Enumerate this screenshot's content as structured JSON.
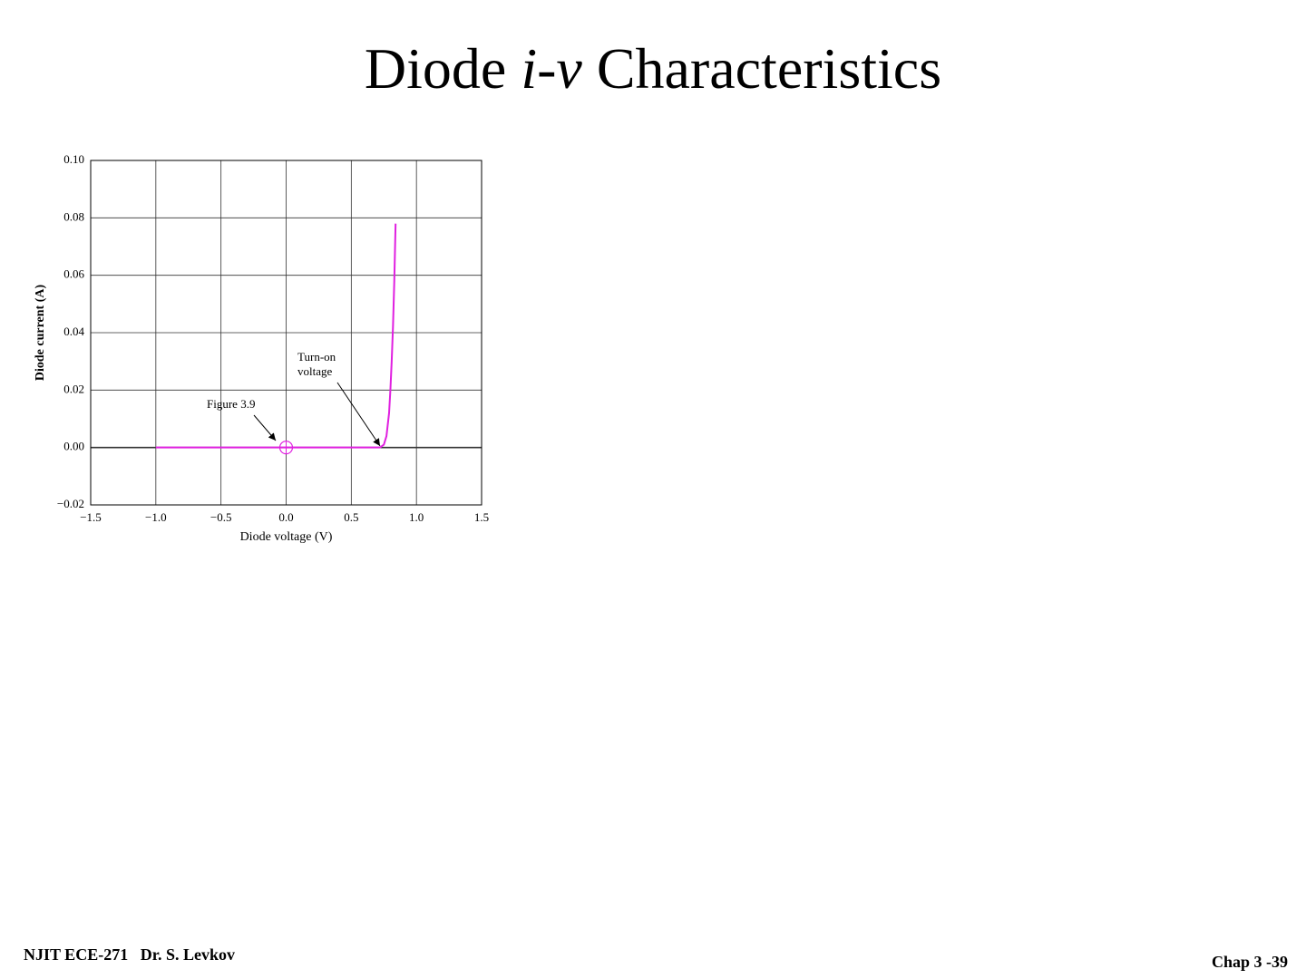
{
  "slide": {
    "title": [
      "Diode ",
      "i-v",
      " Characteristics"
    ],
    "footer_left": "NJIT ECE-271   Dr. S. Levkov",
    "footer_right": "Chap 3 -39"
  },
  "chart_data": {
    "type": "line",
    "xlabel": "Diode voltage (V)",
    "ylabel": "Diode current (A)",
    "x": [
      -1,
      0.72,
      0.75,
      0.77,
      0.79,
      0.8,
      0.81,
      0.82,
      0.83,
      0.84
    ],
    "values": [
      0,
      0,
      0.001,
      0.004,
      0.012,
      0.02,
      0.03,
      0.042,
      0.058,
      0.078
    ],
    "color": "#e020e0",
    "xlim": [
      -1.5,
      1.5
    ],
    "xticks": [
      {
        "value": -1.5,
        "label": "−1.5"
      },
      {
        "value": -1,
        "label": "−1.0"
      },
      {
        "value": -0.5,
        "label": "−0.5"
      },
      {
        "value": 0,
        "label": "0.0"
      },
      0.5,
      {
        "value": 1,
        "label": "1.0"
      },
      1.5
    ],
    "ylim": [
      -0.02,
      0.1
    ],
    "yticks": [
      {
        "value": -0.02,
        "label": "−0.02"
      },
      {
        "value": 0,
        "label": "0.00"
      },
      0.02,
      0.04,
      0.06,
      0.08,
      {
        "value": 0.1,
        "label": "0.10"
      }
    ],
    "grid": true,
    "annotations": [
      [
        "Figure 3.9"
      ],
      [
        "Turn-on",
        "voltage"
      ]
    ]
  }
}
